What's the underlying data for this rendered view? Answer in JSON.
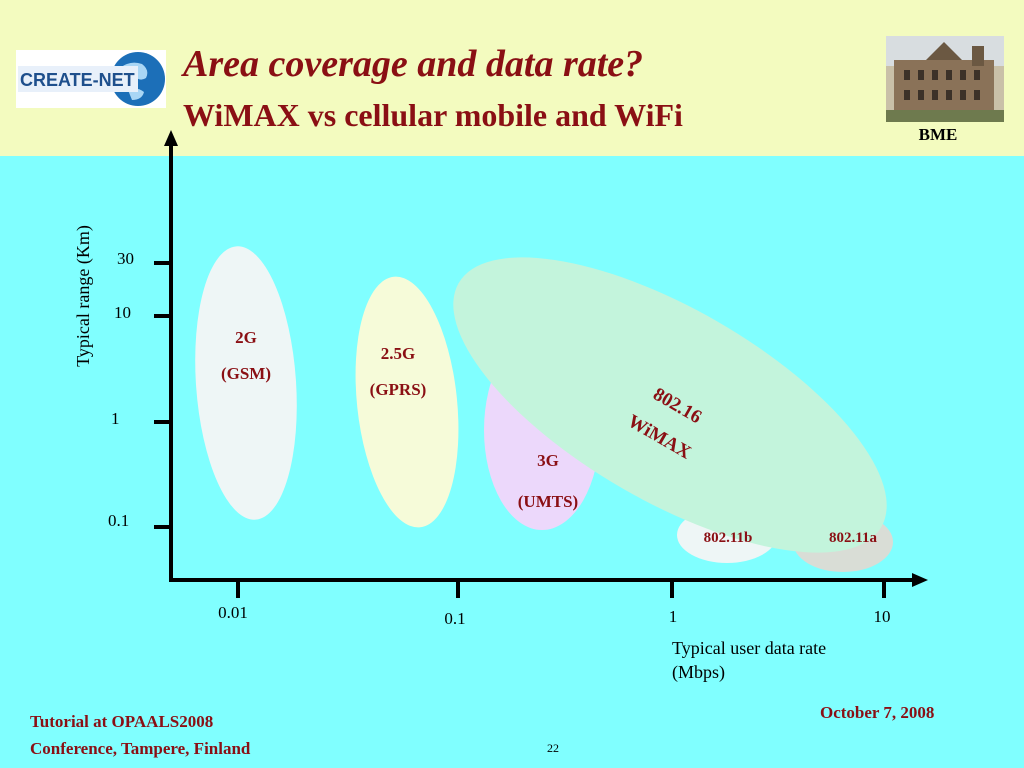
{
  "header": {
    "title": "Area coverage and data rate?",
    "subtitle": "WiMAX vs cellular mobile and WiFi",
    "logo_text": "CREATE-NET",
    "photo_caption": "BME"
  },
  "diagram": {
    "y_axis_title": "Typical range (Km)",
    "y_ticks": [
      "30",
      "10",
      "1",
      "0.1"
    ],
    "x_axis_title_line1": "Typical user data rate",
    "x_axis_title_line2": "(Mbps)",
    "x_ticks": [
      "0.01",
      "0.1",
      "1",
      "10"
    ],
    "regions": [
      {
        "name": "2G",
        "detail": "(GSM)",
        "color": "#eef6f6"
      },
      {
        "name": "2.5G",
        "detail": "(GPRS)",
        "color": "#f6fbd9"
      },
      {
        "name": "3G",
        "detail": "(UMTS)",
        "color": "#ecd8fb"
      },
      {
        "name": "802.16",
        "detail": "WiMAX",
        "color": "#c3f4dc"
      },
      {
        "name": "802.11b",
        "color": "#eef6f6"
      },
      {
        "name": "802.11a",
        "color": "#d9ddd6"
      }
    ]
  },
  "footer": {
    "line1": "Tutorial at OPAALS2008",
    "line2": "Conference, Tampere, Finland",
    "date": "October 7, 2008",
    "page_number": "22"
  },
  "colors": {
    "background": "#80ffff",
    "header_band": "#f3fbbf",
    "accent_text": "#8a0f14"
  }
}
